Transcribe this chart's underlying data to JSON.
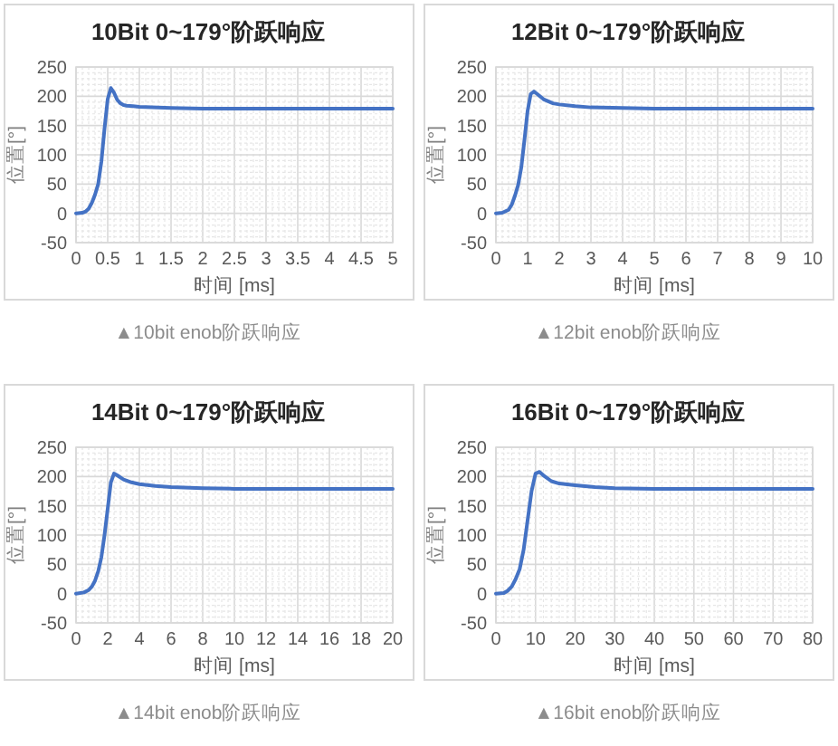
{
  "chart_data": [
    {
      "type": "line",
      "title": "10Bit 0~179°阶跃响应",
      "xlabel": "时间 [ms]",
      "ylabel": "位置[°]",
      "annotations": [
        "▲10bit enob阶跃响应"
      ],
      "color": "#4472c4",
      "grid": true,
      "x": [
        0,
        0.1,
        0.15,
        0.2,
        0.25,
        0.3,
        0.35,
        0.4,
        0.45,
        0.5,
        0.55,
        0.6,
        0.65,
        0.7,
        0.75,
        0.8,
        0.9,
        1,
        1.5,
        2,
        3,
        4,
        5
      ],
      "values": [
        0,
        1,
        3,
        8,
        18,
        32,
        50,
        88,
        145,
        195,
        214,
        206,
        194,
        188,
        185,
        184,
        183,
        182,
        180,
        179,
        179,
        179,
        179
      ],
      "xlim": [
        0,
        5
      ],
      "xticks": [
        0,
        0.5,
        1,
        1.5,
        2,
        2.5,
        3,
        3.5,
        4,
        4.5,
        5
      ],
      "ylim": [
        -50,
        250
      ],
      "yticks": [
        -50,
        0,
        50,
        100,
        150,
        200,
        250
      ]
    },
    {
      "type": "line",
      "title": "12Bit 0~179°阶跃响应",
      "xlabel": "时间 [ms]",
      "ylabel": "位置[°]",
      "annotations": [
        "▲12bit enob阶跃响应"
      ],
      "color": "#4472c4",
      "grid": true,
      "x": [
        0,
        0.2,
        0.4,
        0.5,
        0.6,
        0.7,
        0.8,
        0.9,
        1,
        1.1,
        1.2,
        1.3,
        1.5,
        1.8,
        2,
        2.5,
        3,
        4,
        5,
        6,
        8,
        10
      ],
      "values": [
        0,
        1,
        6,
        15,
        30,
        48,
        78,
        125,
        175,
        204,
        208,
        204,
        195,
        188,
        186,
        183,
        181,
        180,
        179,
        179,
        179,
        179
      ],
      "xlim": [
        0,
        10
      ],
      "xticks": [
        0,
        1,
        2,
        3,
        4,
        5,
        6,
        7,
        8,
        9,
        10
      ],
      "ylim": [
        -50,
        250
      ],
      "yticks": [
        -50,
        0,
        50,
        100,
        150,
        200,
        250
      ]
    },
    {
      "type": "line",
      "title": "14Bit 0~179°阶跃响应",
      "xlabel": "时间 [ms]",
      "ylabel": "位置[°]",
      "annotations": [
        "▲14bit enob阶跃响应"
      ],
      "color": "#4472c4",
      "grid": true,
      "x": [
        0,
        0.5,
        0.8,
        1,
        1.2,
        1.4,
        1.6,
        1.8,
        2,
        2.2,
        2.4,
        2.6,
        3,
        3.5,
        4,
        5,
        6,
        8,
        10,
        12,
        16,
        20
      ],
      "values": [
        0,
        2,
        6,
        12,
        22,
        38,
        62,
        100,
        145,
        190,
        205,
        202,
        195,
        190,
        187,
        184,
        182,
        180,
        179,
        179,
        179,
        179
      ],
      "xlim": [
        0,
        20
      ],
      "xticks": [
        0,
        2,
        4,
        6,
        8,
        10,
        12,
        14,
        16,
        18,
        20
      ],
      "ylim": [
        -50,
        250
      ],
      "yticks": [
        -50,
        0,
        50,
        100,
        150,
        200,
        250
      ]
    },
    {
      "type": "line",
      "title": "16Bit 0~179°阶跃响应",
      "xlabel": "时间 [ms]",
      "ylabel": "位置[°]",
      "annotations": [
        "▲16bit enob阶跃响应"
      ],
      "color": "#4472c4",
      "grid": true,
      "x": [
        0,
        2,
        3,
        4,
        5,
        6,
        7,
        8,
        9,
        10,
        11,
        12,
        14,
        16,
        20,
        25,
        30,
        40,
        50,
        60,
        70,
        80
      ],
      "values": [
        0,
        1,
        5,
        12,
        25,
        42,
        75,
        125,
        175,
        205,
        208,
        202,
        192,
        188,
        185,
        182,
        180,
        179,
        179,
        179,
        179,
        179
      ],
      "xlim": [
        0,
        80
      ],
      "xticks": [
        0,
        10,
        20,
        30,
        40,
        50,
        60,
        70,
        80
      ],
      "ylim": [
        -50,
        250
      ],
      "yticks": [
        -50,
        0,
        50,
        100,
        150,
        200,
        250
      ]
    }
  ]
}
